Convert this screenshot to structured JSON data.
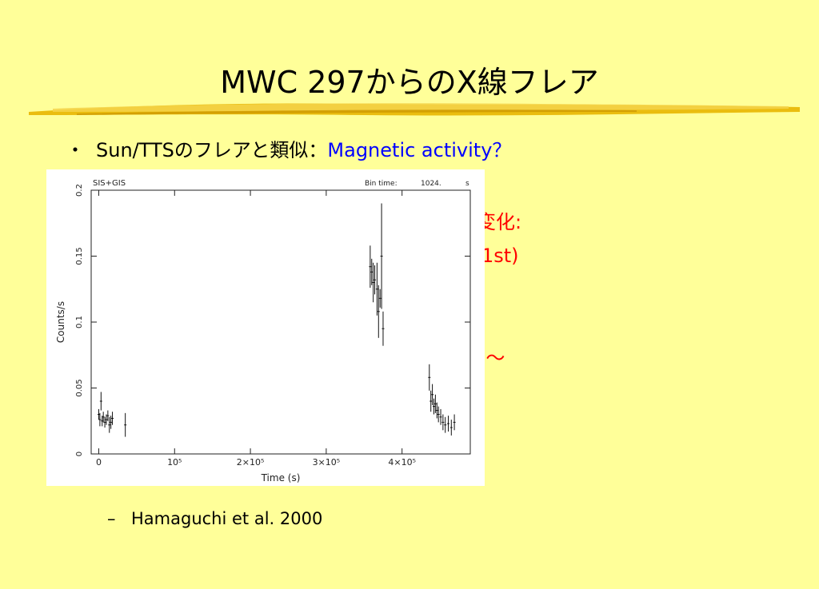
{
  "slide": {
    "title": "MWC 297からのX線フレア",
    "bullet": {
      "marker": "・",
      "text": "Sun/TTSのフレアと類似：",
      "highlight": "Magnetic activity？"
    },
    "partial_text": {
      "line1": "変化:",
      "line2": "1st)",
      "line3": ")～"
    },
    "sub_item": {
      "marker": "–",
      "text": "Hamaguchi et al. 2000"
    }
  },
  "chart_data": {
    "type": "line",
    "header_left": "SIS+GIS",
    "header_right_label": "Bin time:",
    "header_right_value": "1024.",
    "header_right_unit": "s",
    "xlabel": "Time (s)",
    "ylabel": "Counts/s",
    "xlim": [
      -10000,
      490000
    ],
    "ylim": [
      0,
      0.2
    ],
    "x_ticks": [
      {
        "value": 0,
        "label": "0"
      },
      {
        "value": 100000,
        "label": "10⁵"
      },
      {
        "value": 200000,
        "label": "2×10⁵"
      },
      {
        "value": 300000,
        "label": "3×10⁵"
      },
      {
        "value": 400000,
        "label": "4×10⁵"
      }
    ],
    "y_ticks": [
      {
        "value": 0,
        "label": "0"
      },
      {
        "value": 0.05,
        "label": "0.05"
      },
      {
        "value": 0.1,
        "label": "0.1"
      },
      {
        "value": 0.15,
        "label": "0.15"
      },
      {
        "value": 0.2,
        "label": "0.2"
      }
    ],
    "series": [
      {
        "points": [
          {
            "x": 0,
            "y": 0.03,
            "err": 0.004
          },
          {
            "x": 1500,
            "y": 0.026,
            "err": 0.005
          },
          {
            "x": 3000,
            "y": 0.04,
            "err": 0.007
          },
          {
            "x": 4500,
            "y": 0.025,
            "err": 0.004
          },
          {
            "x": 6000,
            "y": 0.028,
            "err": 0.004
          },
          {
            "x": 8000,
            "y": 0.024,
            "err": 0.004
          },
          {
            "x": 10000,
            "y": 0.026,
            "err": 0.004
          },
          {
            "x": 12000,
            "y": 0.029,
            "err": 0.004
          },
          {
            "x": 14000,
            "y": 0.022,
            "err": 0.006
          },
          {
            "x": 16000,
            "y": 0.024,
            "err": 0.005
          },
          {
            "x": 18000,
            "y": 0.027,
            "err": 0.005
          },
          {
            "x": 35000,
            "y": 0.022,
            "err": 0.009
          },
          {
            "x": 358000,
            "y": 0.142,
            "err": 0.016
          },
          {
            "x": 360000,
            "y": 0.138,
            "err": 0.01
          },
          {
            "x": 362000,
            "y": 0.13,
            "err": 0.015
          },
          {
            "x": 364000,
            "y": 0.132,
            "err": 0.011
          },
          {
            "x": 367000,
            "y": 0.125,
            "err": 0.02
          },
          {
            "x": 369000,
            "y": 0.108,
            "err": 0.02
          },
          {
            "x": 371000,
            "y": 0.118,
            "err": 0.007
          },
          {
            "x": 373000,
            "y": 0.15,
            "err": 0.04
          },
          {
            "x": 375000,
            "y": 0.095,
            "err": 0.013
          },
          {
            "x": 436000,
            "y": 0.058,
            "err": 0.01
          },
          {
            "x": 438000,
            "y": 0.04,
            "err": 0.008
          },
          {
            "x": 440000,
            "y": 0.045,
            "err": 0.008
          },
          {
            "x": 442000,
            "y": 0.036,
            "err": 0.006
          },
          {
            "x": 444000,
            "y": 0.038,
            "err": 0.007
          },
          {
            "x": 446000,
            "y": 0.033,
            "err": 0.006
          },
          {
            "x": 448000,
            "y": 0.03,
            "err": 0.006
          },
          {
            "x": 451000,
            "y": 0.028,
            "err": 0.006
          },
          {
            "x": 454000,
            "y": 0.024,
            "err": 0.006
          },
          {
            "x": 457000,
            "y": 0.022,
            "err": 0.006
          },
          {
            "x": 461000,
            "y": 0.023,
            "err": 0.006
          },
          {
            "x": 465000,
            "y": 0.02,
            "err": 0.006
          },
          {
            "x": 469000,
            "y": 0.024,
            "err": 0.006
          }
        ]
      }
    ]
  }
}
